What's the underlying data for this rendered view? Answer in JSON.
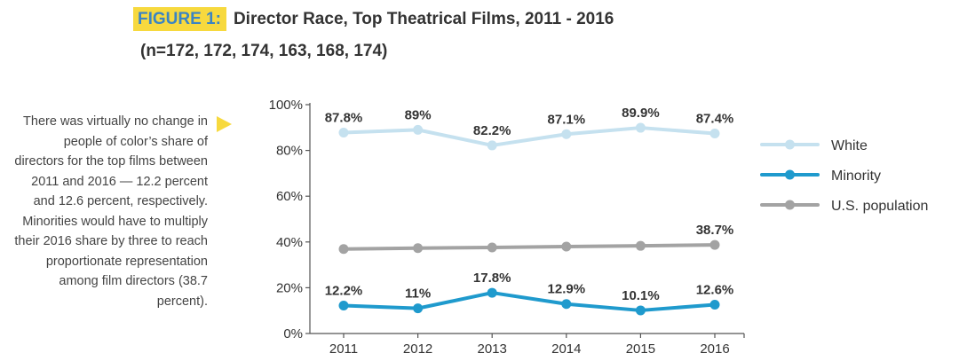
{
  "figure": {
    "label": "FIGURE 1:",
    "title": "Director Race, Top Theatrical Films, 2011 - 2016",
    "subtitle": "(n=172, 172, 174, 163, 168, 174)"
  },
  "note": "There was virtually no change in people of color’s share of directors for the top films between 2011 and 2016 — 12.2 percent and 12.6 percent, respectively. Minorities would have to multiply their 2016 share by three to reach proportionate representation among film directors (38.7 percent).",
  "chart_data": {
    "type": "line",
    "title": "Director Race, Top Theatrical Films, 2011 - 2016",
    "xlabel": "",
    "ylabel": "",
    "categories": [
      "2011",
      "2012",
      "2013",
      "2014",
      "2015",
      "2016"
    ],
    "ylim": [
      0,
      100
    ],
    "yticks": [
      "0%",
      "20%",
      "40%",
      "60%",
      "80%",
      "100%"
    ],
    "legend_position": "right",
    "series": [
      {
        "name": "White",
        "color": "#c5e1ef",
        "values": [
          87.8,
          89,
          82.2,
          87.1,
          89.9,
          87.4
        ],
        "labels": [
          "87.8%",
          "89%",
          "82.2%",
          "87.1%",
          "89.9%",
          "87.4%"
        ],
        "label_position": "above"
      },
      {
        "name": "Minority",
        "color": "#1f9acd",
        "values": [
          12.2,
          11,
          17.8,
          12.9,
          10.1,
          12.6
        ],
        "labels": [
          "12.2%",
          "11%",
          "17.8%",
          "12.9%",
          "10.1%",
          "12.6%"
        ],
        "label_position": "above"
      },
      {
        "name": "U.S. population",
        "color": "#a3a3a3",
        "values": [
          36.9,
          37.3,
          37.6,
          38.0,
          38.3,
          38.7
        ],
        "labels": [
          "",
          "",
          "",
          "",
          "",
          "38.7%"
        ],
        "label_position": "above"
      }
    ]
  }
}
